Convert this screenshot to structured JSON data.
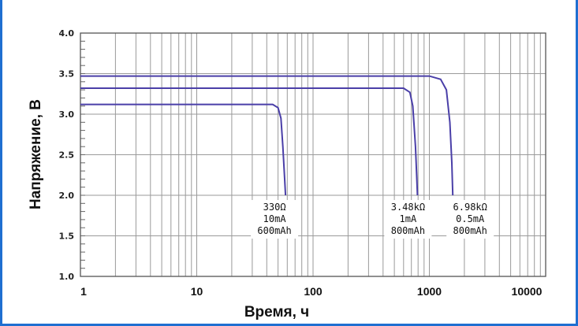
{
  "chart_data": {
    "type": "line",
    "title": "",
    "xlabel": "Время, ч",
    "ylabel": "Напряжение, В",
    "x_scale": "log",
    "xlim": [
      1,
      10000
    ],
    "ylim": [
      1.0,
      4.0
    ],
    "x_ticks": [
      "1",
      "10",
      "100",
      "1000",
      "10000"
    ],
    "y_ticks": [
      "1.0",
      "1.5",
      "2.0",
      "2.5",
      "3.0",
      "3.5",
      "4.0"
    ],
    "grid": true,
    "line_color": "#4a3fa8",
    "series": [
      {
        "label_lines": [
          "330Ω",
          "10mA",
          "600mAh"
        ],
        "points": [
          [
            1,
            3.12
          ],
          [
            45,
            3.12
          ],
          [
            50,
            3.08
          ],
          [
            53,
            2.95
          ],
          [
            55,
            2.6
          ],
          [
            57,
            2.2
          ],
          [
            58,
            2.0
          ]
        ]
      },
      {
        "label_lines": [
          "3.48kΩ",
          "1mA",
          "800mAh"
        ],
        "points": [
          [
            1,
            3.32
          ],
          [
            600,
            3.32
          ],
          [
            680,
            3.27
          ],
          [
            720,
            3.1
          ],
          [
            760,
            2.6
          ],
          [
            780,
            2.2
          ],
          [
            790,
            2.0
          ]
        ]
      },
      {
        "label_lines": [
          "6.98kΩ",
          "0.5mA",
          "800mAh"
        ],
        "points": [
          [
            1,
            3.47
          ],
          [
            1000,
            3.47
          ],
          [
            1250,
            3.43
          ],
          [
            1400,
            3.3
          ],
          [
            1500,
            2.9
          ],
          [
            1560,
            2.4
          ],
          [
            1590,
            2.0
          ]
        ]
      }
    ]
  }
}
